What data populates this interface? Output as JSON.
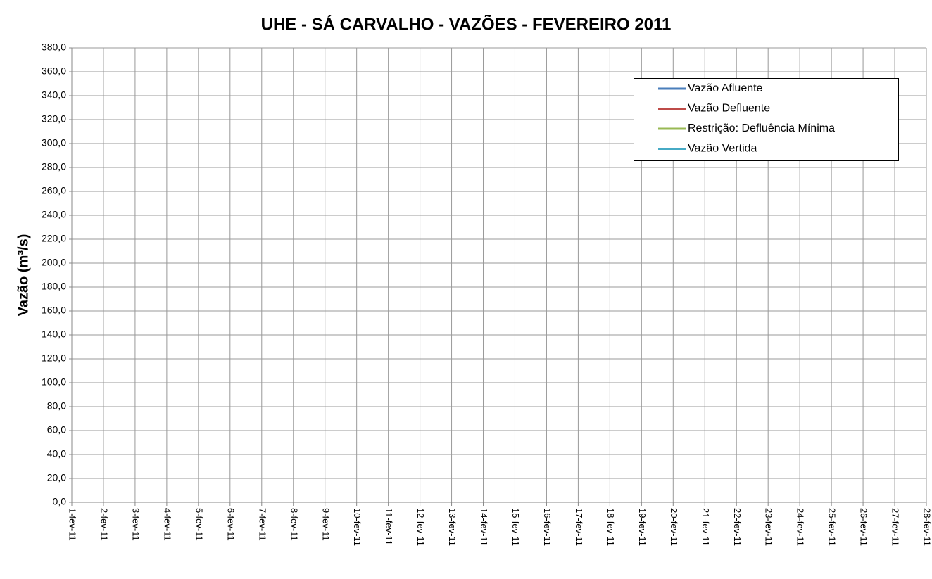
{
  "chart_data": {
    "type": "line",
    "title": "UHE - SÁ CARVALHO - VAZÕES - FEVEREIRO 2011",
    "y_label": "Vazão (m³/s)",
    "categories": [
      "1-fev-11",
      "2-fev-11",
      "3-fev-11",
      "4-fev-11",
      "5-fev-11",
      "6-fev-11",
      "7-fev-11",
      "8-fev-11",
      "9-fev-11",
      "10-fev-11",
      "11-fev-11",
      "12-fev-11",
      "13-fev-11",
      "14-fev-11",
      "15-fev-11",
      "16-fev-11",
      "17-fev-11",
      "18-fev-11",
      "19-fev-11",
      "20-fev-11",
      "21-fev-11",
      "22-fev-11",
      "23-fev-11",
      "24-fev-11",
      "25-fev-11",
      "26-fev-11",
      "27-fev-11",
      "28-fev-11"
    ],
    "series": [
      {
        "name": "Vazão Afluente",
        "color": "#4a7ebb",
        "values": [
          null,
          null,
          null,
          null,
          null,
          null,
          null,
          null,
          null,
          null,
          null,
          null,
          null,
          null,
          null,
          null,
          null,
          null,
          null,
          null,
          null,
          null,
          null,
          null,
          null,
          null,
          null,
          null
        ]
      },
      {
        "name": "Vazão Defluente",
        "color": "#be4b48",
        "values": [
          null,
          null,
          null,
          null,
          null,
          null,
          null,
          null,
          null,
          null,
          null,
          null,
          null,
          null,
          null,
          null,
          null,
          null,
          null,
          null,
          null,
          null,
          null,
          null,
          null,
          null,
          null,
          null
        ]
      },
      {
        "name": "Restrição: Defluência Mínima",
        "color": "#98b954",
        "values": [
          null,
          null,
          null,
          null,
          null,
          null,
          null,
          null,
          null,
          null,
          null,
          null,
          null,
          null,
          null,
          null,
          null,
          null,
          null,
          null,
          null,
          null,
          null,
          null,
          null,
          null,
          null,
          null
        ]
      },
      {
        "name": "Vazão Vertida",
        "color": "#46aac5",
        "values": [
          null,
          null,
          null,
          null,
          null,
          null,
          null,
          null,
          null,
          null,
          null,
          null,
          null,
          null,
          null,
          null,
          null,
          null,
          null,
          null,
          null,
          null,
          null,
          null,
          null,
          null,
          null,
          null
        ]
      }
    ],
    "ylim": [
      0,
      380
    ],
    "yticks": [
      {
        "value": 0,
        "label": "0,0"
      },
      {
        "value": 20,
        "label": "20,0"
      },
      {
        "value": 40,
        "label": "40,0"
      },
      {
        "value": 60,
        "label": "60,0"
      },
      {
        "value": 80,
        "label": "80,0"
      },
      {
        "value": 100,
        "label": "100,0"
      },
      {
        "value": 120,
        "label": "120,0"
      },
      {
        "value": 140,
        "label": "140,0"
      },
      {
        "value": 160,
        "label": "160,0"
      },
      {
        "value": 180,
        "label": "180,0"
      },
      {
        "value": 200,
        "label": "200,0"
      },
      {
        "value": 220,
        "label": "220,0"
      },
      {
        "value": 240,
        "label": "240,0"
      },
      {
        "value": 260,
        "label": "260,0"
      },
      {
        "value": 280,
        "label": "280,0"
      },
      {
        "value": 300,
        "label": "300,0"
      },
      {
        "value": 320,
        "label": "320,0"
      },
      {
        "value": 340,
        "label": "340,0"
      },
      {
        "value": 360,
        "label": "360,0"
      },
      {
        "value": 380,
        "label": "380,0"
      }
    ],
    "grid": true,
    "legend": "upper right"
  }
}
